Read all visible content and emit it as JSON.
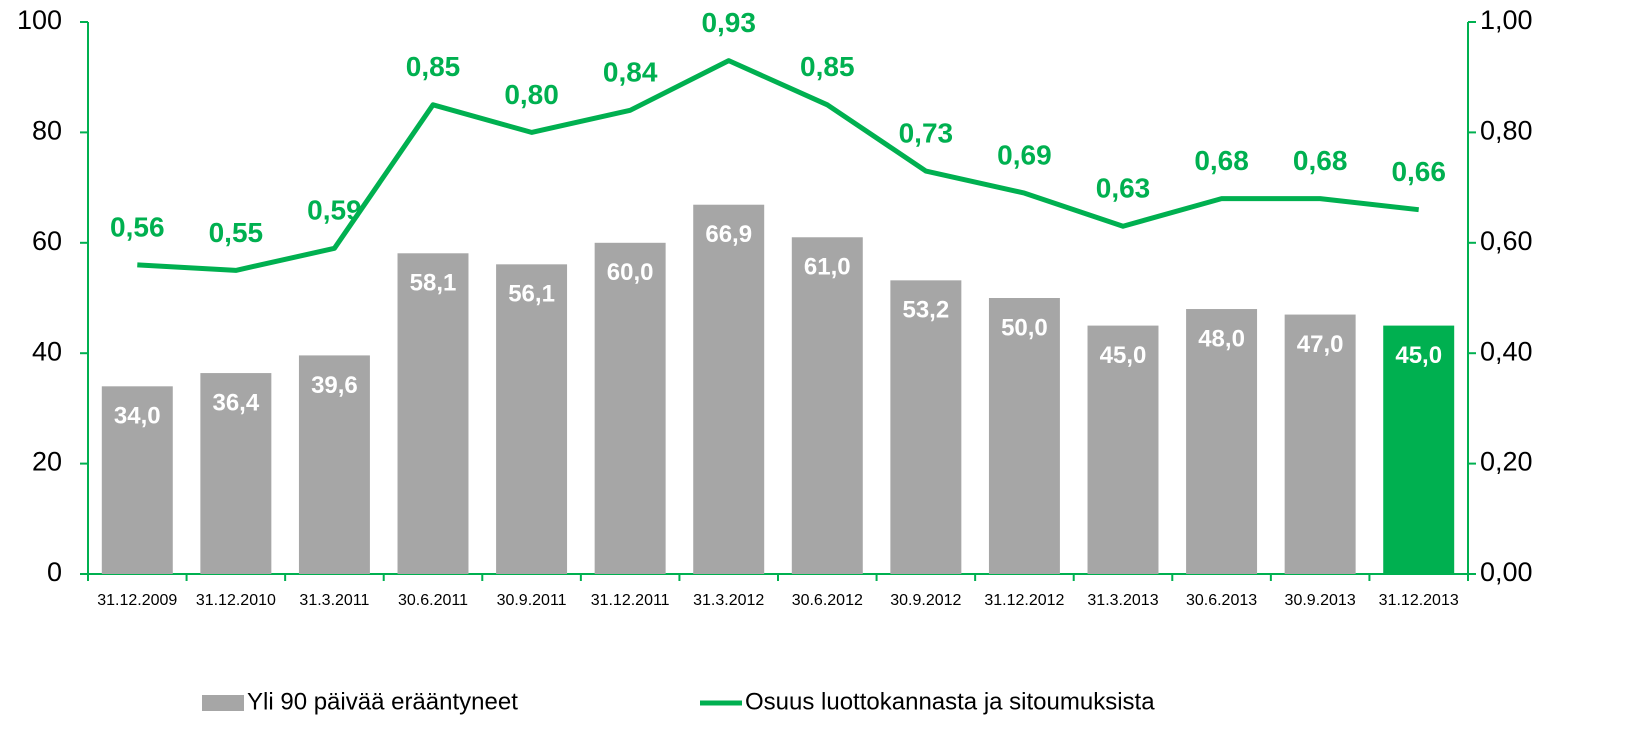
{
  "chart_data": {
    "type": "bar-line",
    "categories": [
      "31.12.2009",
      "31.12.2010",
      "31.3.2011",
      "30.6.2011",
      "30.9.2011",
      "31.12.2011",
      "31.3.2012",
      "30.6.2012",
      "30.9.2012",
      "31.12.2012",
      "31.3.2013",
      "30.6.2013",
      "30.9.2013",
      "31.12.2013"
    ],
    "series": [
      {
        "name": "Yli 90 päivää erääntyneet",
        "type": "bar",
        "color": "#a6a6a6",
        "colors": [
          "#a6a6a6",
          "#a6a6a6",
          "#a6a6a6",
          "#a6a6a6",
          "#a6a6a6",
          "#a6a6a6",
          "#a6a6a6",
          "#a6a6a6",
          "#a6a6a6",
          "#a6a6a6",
          "#a6a6a6",
          "#a6a6a6",
          "#a6a6a6",
          "#00b050"
        ],
        "values": [
          34.0,
          36.4,
          39.6,
          58.1,
          56.1,
          60.0,
          66.9,
          61.0,
          53.2,
          50.0,
          45.0,
          48.0,
          47.0,
          45.0
        ],
        "value_labels": [
          "34,0",
          "36,4",
          "39,6",
          "58,1",
          "56,1",
          "60,0",
          "66,9",
          "61,0",
          "53,2",
          "50,0",
          "45,0",
          "48,0",
          "47,0",
          "45,0"
        ]
      },
      {
        "name": "Osuus luottokannasta ja sitoumuksista",
        "type": "line",
        "axis": "y2",
        "color": "#00b050",
        "values": [
          0.56,
          0.55,
          0.59,
          0.85,
          0.8,
          0.84,
          0.93,
          0.85,
          0.73,
          0.69,
          0.63,
          0.68,
          0.68,
          0.66
        ],
        "value_labels": [
          "0,56",
          "0,55",
          "0,59",
          "0,85",
          "0,80",
          "0,84",
          "0,93",
          "0,85",
          "0,73",
          "0,69",
          "0,63",
          "0,68",
          "0,68",
          "0,66"
        ]
      }
    ],
    "ylim": [
      0,
      100
    ],
    "yticks": [
      0,
      20,
      40,
      60,
      80,
      100
    ],
    "y2lim": [
      0,
      1
    ],
    "y2ticks": [
      {
        "value": 0,
        "label": "0,00"
      },
      {
        "value": 0.2,
        "label": "0,20"
      },
      {
        "value": 0.4,
        "label": "0,40"
      },
      {
        "value": 0.6,
        "label": "0,60"
      },
      {
        "value": 0.8,
        "label": "0,80"
      },
      {
        "value": 1,
        "label": "1,00"
      }
    ],
    "axis_color": "#00b050",
    "legend": "bottom"
  }
}
